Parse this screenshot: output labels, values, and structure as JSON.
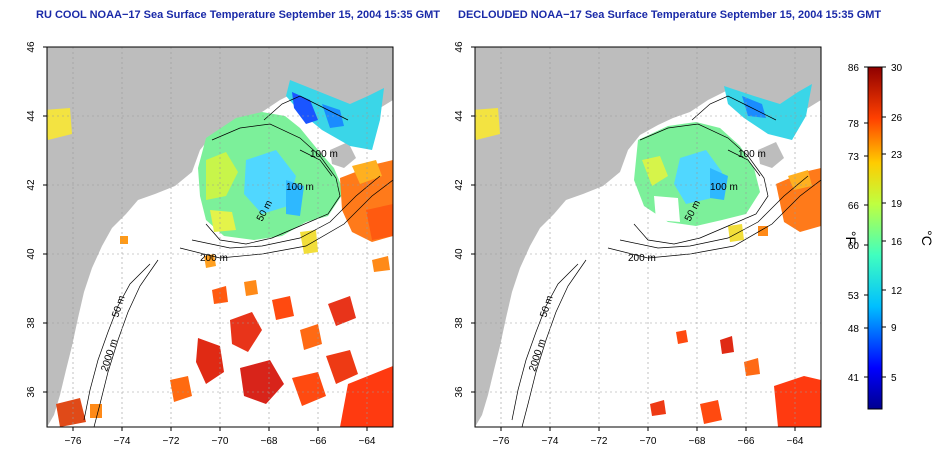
{
  "panels": [
    {
      "title": "RU COOL NOAA−17 Sea Surface Temperature September 15, 2004 15:35 GMT",
      "isobaths": [
        "100 m",
        "100 m",
        "50 m",
        "200 m",
        "50 m",
        "2000 m"
      ]
    },
    {
      "title": "DECLOUDED NOAA−17 Sea Surface Temperature September 15, 2004 15:35 GMT",
      "isobaths": [
        "100 m",
        "100 m",
        "50 m",
        "200 m",
        "50 m",
        "2000 m"
      ]
    }
  ],
  "axes": {
    "x_ticks": [
      "−76",
      "−74",
      "−72",
      "−70",
      "−68",
      "−66",
      "−64"
    ],
    "y_ticks": [
      "46",
      "44",
      "42",
      "40",
      "38",
      "36"
    ]
  },
  "colorbar": {
    "f_ticks": [
      "86",
      "78",
      "73",
      "66",
      "60",
      "53",
      "48",
      "41"
    ],
    "c_ticks": [
      "30",
      "26",
      "23",
      "19",
      "16",
      "12",
      "9",
      "5"
    ],
    "f_unit": "°F",
    "c_unit": "°C"
  },
  "colors": {
    "land": "#bdbdbd",
    "title": "#1a2aa8"
  }
}
